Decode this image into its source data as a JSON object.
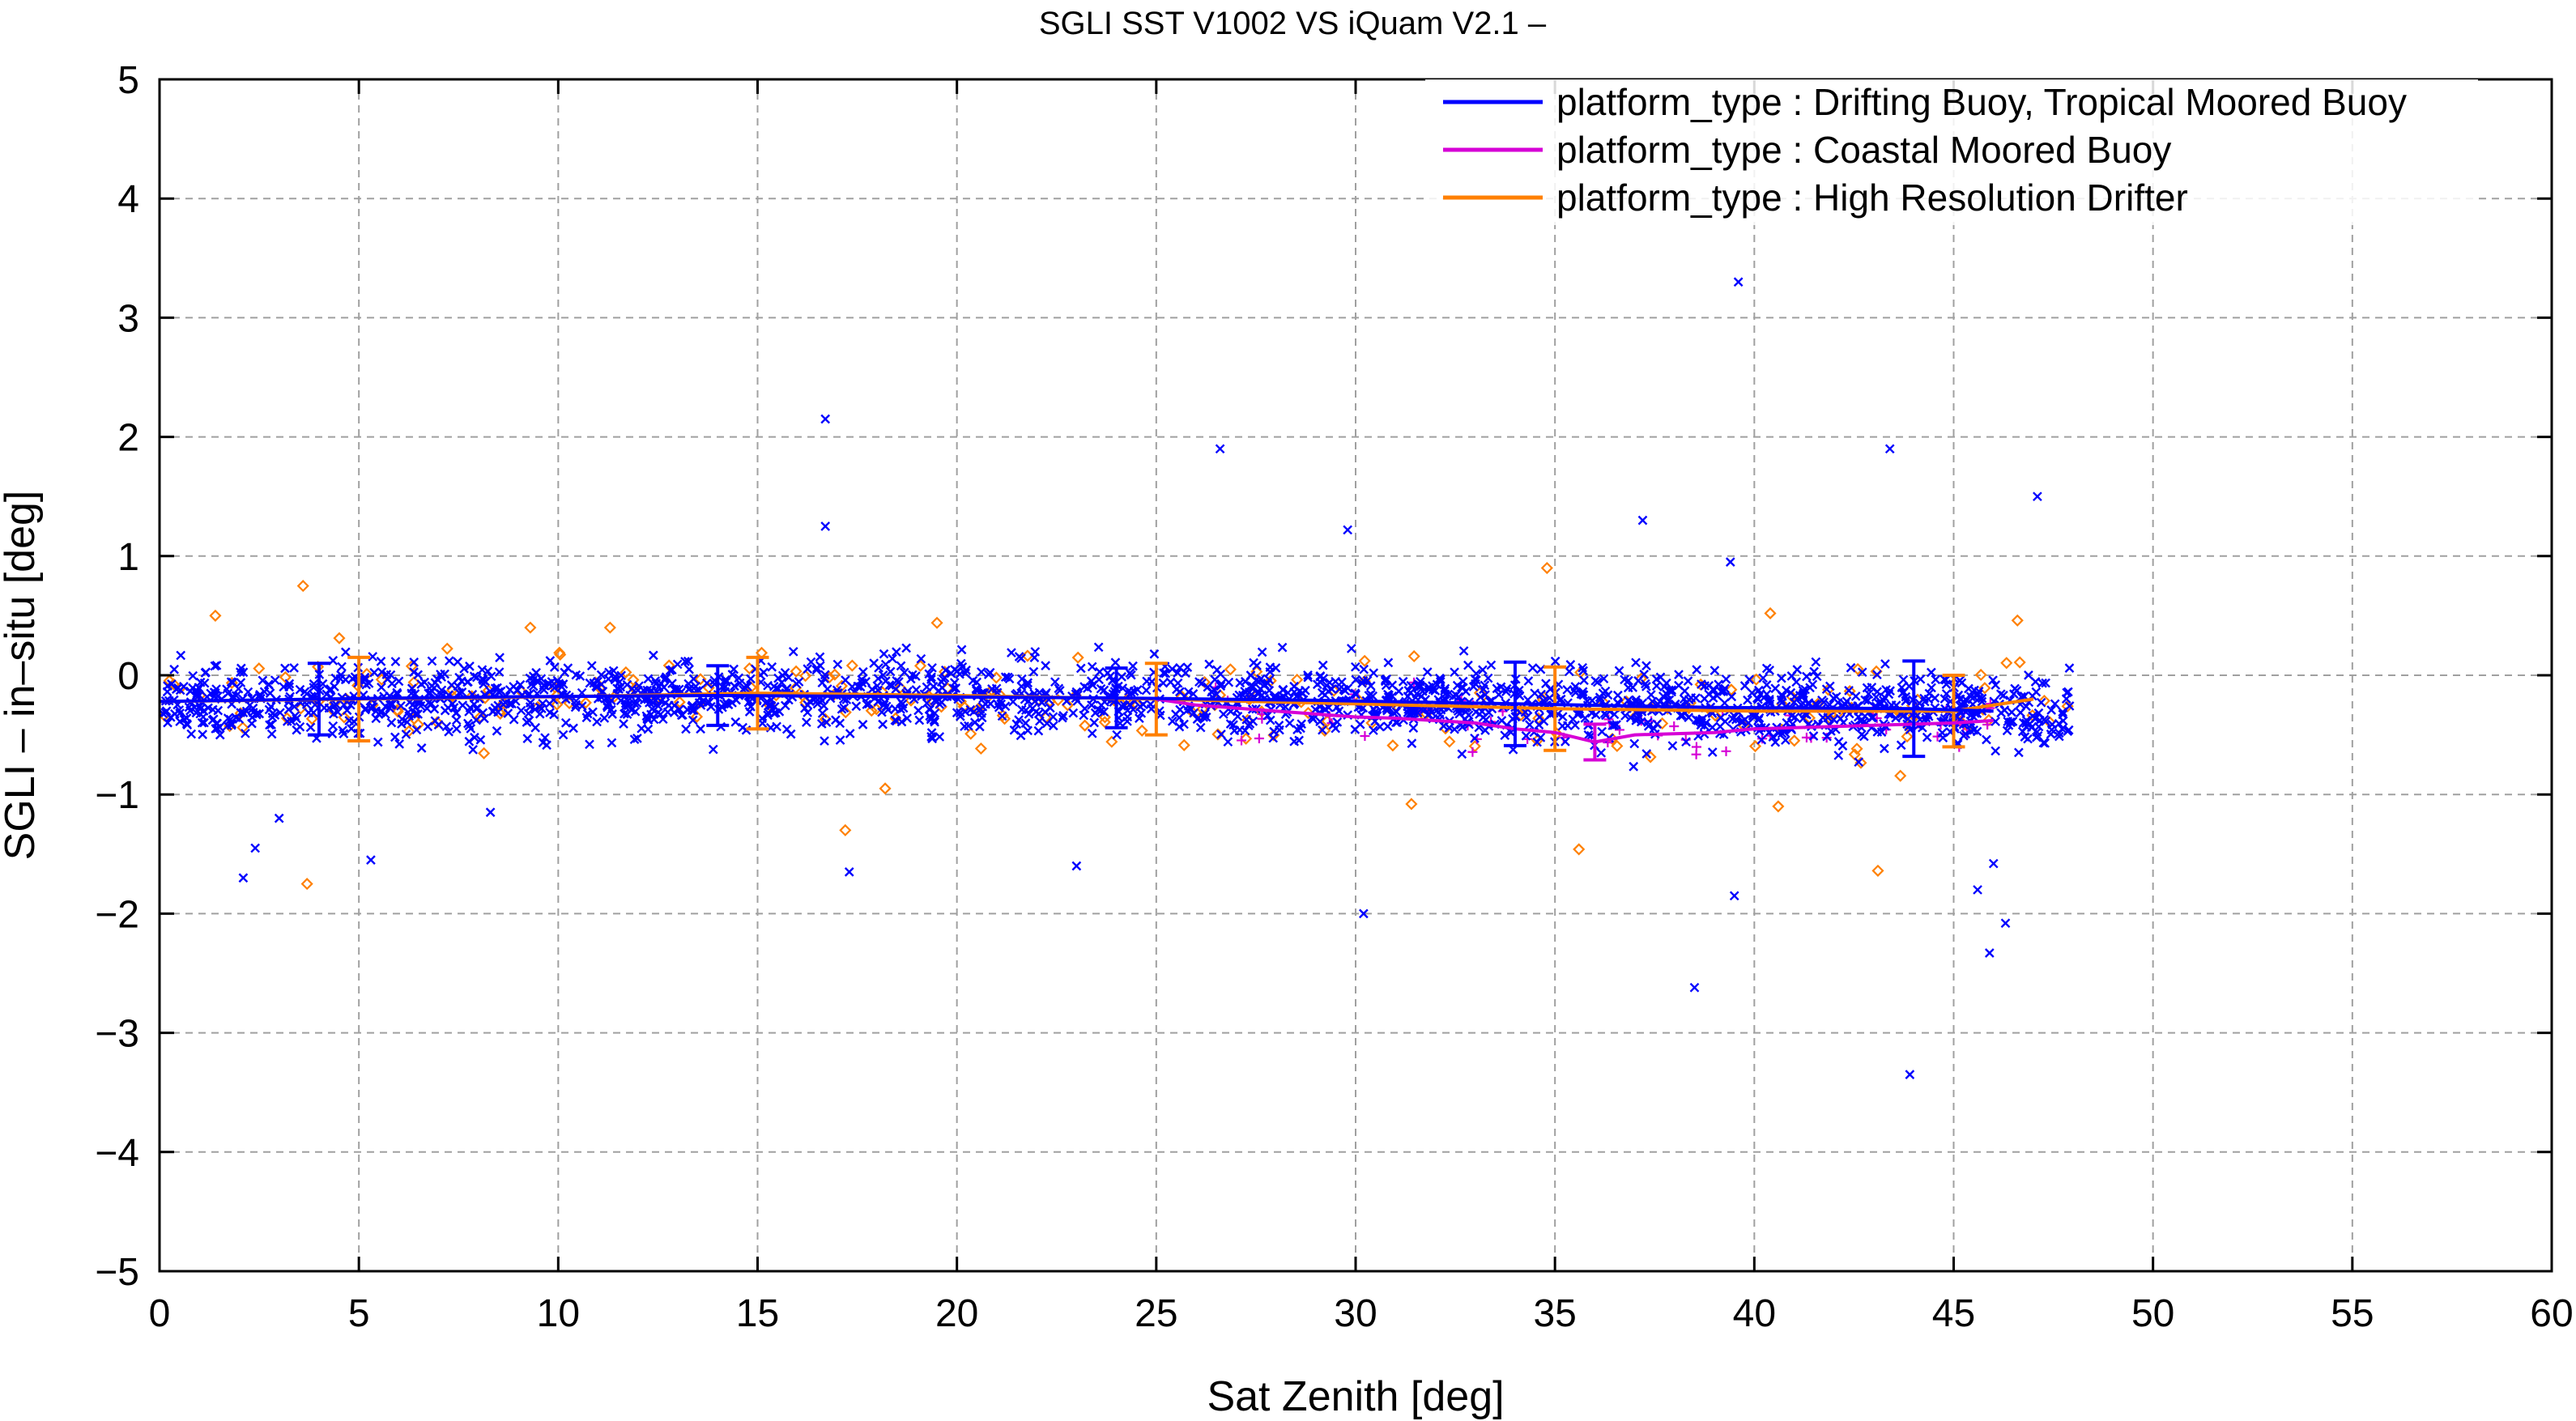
{
  "chart_data": {
    "type": "scatter",
    "title": "SGLI SST V1002 VS iQuam V2.1  –",
    "xlabel": "Sat Zenith [deg]",
    "ylabel": "SGLI – in–situ [deg]",
    "xlim": [
      0,
      60
    ],
    "ylim": [
      -5,
      5
    ],
    "x_ticks": [
      0,
      5,
      10,
      15,
      20,
      25,
      30,
      35,
      40,
      45,
      50,
      55,
      60
    ],
    "y_ticks": [
      -5,
      -4,
      -3,
      -2,
      -1,
      0,
      1,
      2,
      3,
      4,
      5
    ],
    "x_tick_labels": [
      "0",
      "5",
      "10",
      "15",
      "20",
      "25",
      "30",
      "35",
      "40",
      "45",
      "50",
      "55",
      "60"
    ],
    "y_tick_labels": [
      "−5",
      "−4",
      "−3",
      "−2",
      "−1",
      "0",
      "1",
      "2",
      "3",
      "4",
      "5"
    ],
    "grid": true,
    "legend_position": "top-right",
    "series": [
      {
        "name": "platform_type : Drifting Buoy, Tropical Moored Buoy",
        "color": "#0000ff",
        "marker": "x",
        "mean_line": {
          "x": [
            0,
            4,
            9,
            14,
            19,
            24,
            29,
            34,
            39,
            44,
            46
          ],
          "y": [
            -0.22,
            -0.2,
            -0.18,
            -0.17,
            -0.18,
            -0.19,
            -0.21,
            -0.24,
            -0.27,
            -0.28,
            -0.3
          ]
        },
        "error_bars": [
          {
            "x": 4,
            "y": -0.2,
            "sd": 0.3
          },
          {
            "x": 14,
            "y": -0.17,
            "sd": 0.25
          },
          {
            "x": 24,
            "y": -0.19,
            "sd": 0.25
          },
          {
            "x": 34,
            "y": -0.24,
            "sd": 0.35
          },
          {
            "x": 44,
            "y": -0.28,
            "sd": 0.4
          }
        ],
        "notable_points": [
          {
            "x": 16.7,
            "y": 2.15
          },
          {
            "x": 16.7,
            "y": 1.25
          },
          {
            "x": 26.6,
            "y": 1.9
          },
          {
            "x": 29.8,
            "y": 1.22
          },
          {
            "x": 39.6,
            "y": 3.3
          },
          {
            "x": 43.4,
            "y": 1.9
          },
          {
            "x": 47.1,
            "y": 1.5
          },
          {
            "x": 37.2,
            "y": 1.3
          },
          {
            "x": 39.4,
            "y": 0.95
          },
          {
            "x": 2.1,
            "y": -1.7
          },
          {
            "x": 2.4,
            "y": -1.45
          },
          {
            "x": 5.3,
            "y": -1.55
          },
          {
            "x": 23.0,
            "y": -1.6
          },
          {
            "x": 30.2,
            "y": -2.0
          },
          {
            "x": 38.5,
            "y": -2.62
          },
          {
            "x": 39.5,
            "y": -1.85
          },
          {
            "x": 43.9,
            "y": -3.35
          },
          {
            "x": 45.6,
            "y": -1.8
          },
          {
            "x": 45.9,
            "y": -2.33
          },
          {
            "x": 46.3,
            "y": -2.08
          },
          {
            "x": 46.0,
            "y": -1.58
          },
          {
            "x": 17.3,
            "y": -1.65
          },
          {
            "x": 8.3,
            "y": -1.15
          },
          {
            "x": 3.0,
            "y": -1.2
          }
        ]
      },
      {
        "name": "platform_type : Coastal Moored Buoy",
        "color": "#d600d6",
        "marker": "+",
        "mean_line": {
          "x": [
            25,
            26,
            28,
            30,
            31,
            33,
            34,
            35,
            36,
            37,
            39,
            40,
            42,
            43,
            44,
            45,
            46
          ],
          "y": [
            -0.2,
            -0.25,
            -0.3,
            -0.35,
            -0.36,
            -0.4,
            -0.45,
            -0.48,
            -0.56,
            -0.5,
            -0.48,
            -0.45,
            -0.43,
            -0.42,
            -0.41,
            -0.4,
            -0.38
          ]
        },
        "error_bars": [
          {
            "x": 36,
            "y": -0.56,
            "sd": 0.15
          }
        ]
      },
      {
        "name": "platform_type : High Resolution Drifter",
        "color": "#ff8000",
        "marker": "diamond",
        "mean_line": {
          "x": [
            0,
            5,
            10,
            15,
            20,
            25,
            30,
            35,
            40,
            45,
            47
          ],
          "y": [
            -0.22,
            -0.2,
            -0.18,
            -0.15,
            -0.17,
            -0.2,
            -0.24,
            -0.28,
            -0.3,
            -0.3,
            -0.2
          ]
        },
        "error_bars": [
          {
            "x": 5,
            "y": -0.2,
            "sd": 0.35
          },
          {
            "x": 15,
            "y": -0.15,
            "sd": 0.3
          },
          {
            "x": 25,
            "y": -0.2,
            "sd": 0.3
          },
          {
            "x": 35,
            "y": -0.28,
            "sd": 0.35
          },
          {
            "x": 45,
            "y": -0.3,
            "sd": 0.3
          }
        ],
        "notable_points": [
          {
            "x": 3.6,
            "y": 0.75
          },
          {
            "x": 1.4,
            "y": 0.5
          },
          {
            "x": 3.7,
            "y": -1.75
          },
          {
            "x": 17.2,
            "y": -1.3
          },
          {
            "x": 18.2,
            "y": -0.95
          },
          {
            "x": 31.4,
            "y": -1.08
          },
          {
            "x": 35.6,
            "y": -1.46
          },
          {
            "x": 43.1,
            "y": -1.64
          },
          {
            "x": 40.6,
            "y": -1.1
          },
          {
            "x": 34.8,
            "y": 0.9
          },
          {
            "x": 46.6,
            "y": 0.46
          },
          {
            "x": 40.4,
            "y": 0.52
          },
          {
            "x": 19.5,
            "y": 0.44
          },
          {
            "x": 11.3,
            "y": 0.4
          },
          {
            "x": 9.3,
            "y": 0.4
          }
        ]
      }
    ]
  }
}
